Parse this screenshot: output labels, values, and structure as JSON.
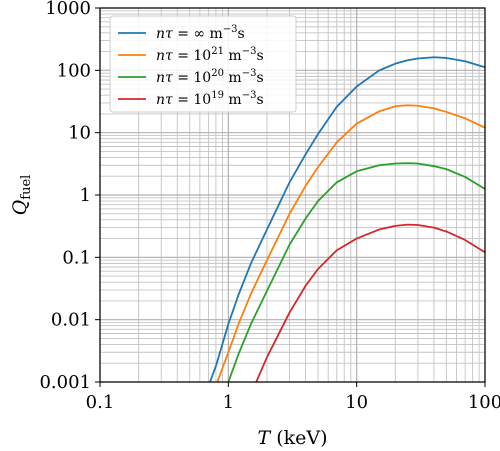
{
  "chart_data": {
    "type": "line",
    "xscale": "log",
    "yscale": "log",
    "xlim": [
      0.1,
      100
    ],
    "ylim": [
      0.001,
      1000
    ],
    "grid": true,
    "legend_position": "top-left",
    "xlabel": {
      "symbol": "T",
      "unit": "(keV)"
    },
    "ylabel": {
      "symbol": "Q",
      "subscript": "fuel"
    },
    "x_ticks": [
      {
        "value": 0.1,
        "label": "0.1"
      },
      {
        "value": 1,
        "label": "1"
      },
      {
        "value": 10,
        "label": "10"
      },
      {
        "value": 100,
        "label": "100"
      }
    ],
    "y_ticks": [
      {
        "value": 0.001,
        "label": "0.001"
      },
      {
        "value": 0.01,
        "label": "0.01"
      },
      {
        "value": 0.1,
        "label": "0.1"
      },
      {
        "value": 1,
        "label": "1"
      },
      {
        "value": 10,
        "label": "10"
      },
      {
        "value": 100,
        "label": "100"
      },
      {
        "value": 1000,
        "label": "1000"
      }
    ],
    "series": [
      {
        "name": "nτ = ∞ m⁻³s",
        "legend": {
          "lhs": "nτ",
          "rhs_base": "∞",
          "rhs_exp": ""
        },
        "color": "#1f77b4",
        "x": [
          0.72,
          0.8,
          1,
          1.2,
          1.5,
          2,
          3,
          4,
          5,
          7,
          10,
          15,
          20,
          25,
          30,
          40,
          50,
          70,
          100
        ],
        "y": [
          0.001,
          0.0018,
          0.0085,
          0.025,
          0.08,
          0.28,
          1.6,
          4.5,
          9.5,
          26,
          55,
          100,
          128,
          145,
          155,
          162,
          158,
          140,
          112
        ]
      },
      {
        "name": "nτ = 10²¹ m⁻³s",
        "legend": {
          "lhs": "nτ",
          "rhs_base": "10",
          "rhs_exp": "21"
        },
        "color": "#ff7f0e",
        "x": [
          0.82,
          1,
          1.2,
          1.5,
          2,
          3,
          4,
          5,
          7,
          10,
          15,
          20,
          25,
          30,
          40,
          50,
          70,
          100
        ],
        "y": [
          0.001,
          0.003,
          0.0085,
          0.026,
          0.09,
          0.5,
          1.4,
          2.8,
          7,
          14,
          22,
          26.5,
          27.5,
          27,
          24.5,
          21.5,
          17,
          12
        ]
      },
      {
        "name": "nτ = 10²⁰ m⁻³s",
        "legend": {
          "lhs": "nτ",
          "rhs_base": "10",
          "rhs_exp": "20"
        },
        "color": "#2ca02c",
        "x": [
          1.0,
          1.2,
          1.5,
          2,
          3,
          4,
          5,
          7,
          10,
          15,
          20,
          25,
          30,
          40,
          50,
          70,
          100
        ],
        "y": [
          0.001,
          0.0028,
          0.0085,
          0.029,
          0.16,
          0.42,
          0.8,
          1.6,
          2.4,
          3.0,
          3.2,
          3.25,
          3.2,
          2.9,
          2.6,
          1.95,
          1.25
        ]
      },
      {
        "name": "nτ = 10¹⁹ m⁻³s",
        "legend": {
          "lhs": "nτ",
          "rhs_base": "10",
          "rhs_exp": "19"
        },
        "color": "#d62728",
        "x": [
          1.65,
          2,
          3,
          4,
          5,
          7,
          10,
          15,
          20,
          25,
          30,
          40,
          50,
          70,
          100
        ],
        "y": [
          0.001,
          0.0025,
          0.013,
          0.035,
          0.065,
          0.13,
          0.2,
          0.28,
          0.32,
          0.335,
          0.33,
          0.3,
          0.26,
          0.19,
          0.12
        ]
      }
    ]
  }
}
